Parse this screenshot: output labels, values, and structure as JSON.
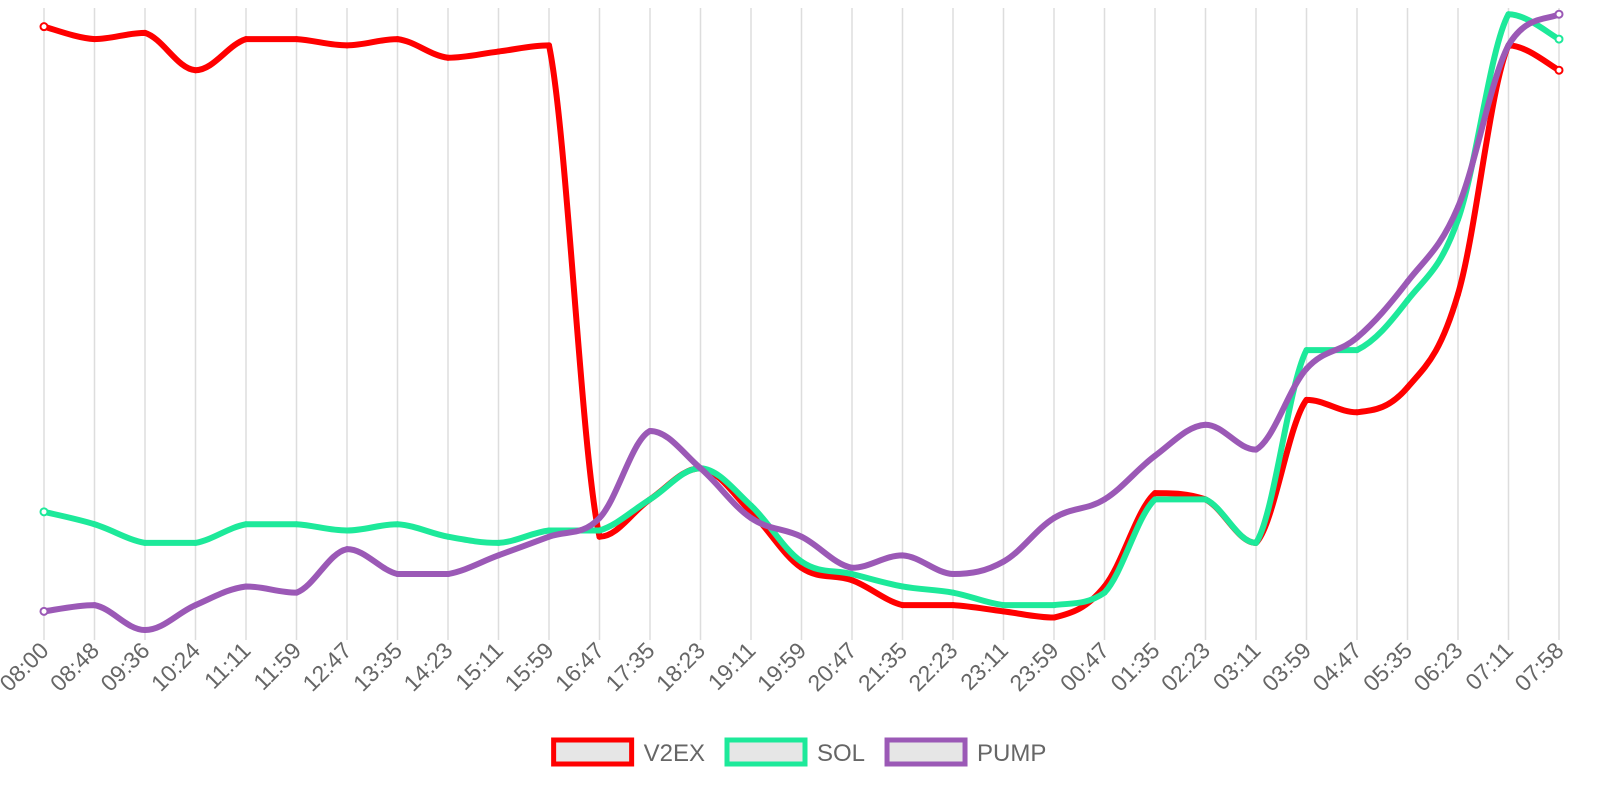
{
  "chart_data": {
    "type": "line",
    "title": "",
    "xlabel": "",
    "ylabel": "",
    "grid": "vertical",
    "legend": "bottom-center",
    "y_axis": "hidden",
    "categories": [
      "08:00",
      "08:48",
      "09:36",
      "10:24",
      "11:11",
      "11:59",
      "12:47",
      "13:35",
      "14:23",
      "15:11",
      "15:59",
      "16:47",
      "17:35",
      "18:23",
      "19:11",
      "19:59",
      "20:47",
      "21:35",
      "22:23",
      "23:11",
      "23:59",
      "00:47",
      "01:35",
      "02:23",
      "03:11",
      "03:59",
      "04:47",
      "05:35",
      "06:23",
      "07:11",
      "07:58"
    ],
    "ylim": [
      0,
      100
    ],
    "series": [
      {
        "name": "V2EX",
        "color": "#ff0000",
        "values": [
          97,
          95,
          96,
          90,
          95,
          95,
          94,
          95,
          92,
          93,
          94,
          15,
          21,
          26,
          19,
          10,
          8,
          4,
          4,
          3,
          2,
          7,
          22,
          21,
          14,
          37,
          35,
          39,
          54,
          94,
          90
        ]
      },
      {
        "name": "SOL",
        "color": "#1de99a",
        "values": [
          19,
          17,
          14,
          14,
          17,
          17,
          16,
          17,
          15,
          14,
          16,
          16,
          21,
          26,
          20,
          11,
          9,
          7,
          6,
          4,
          4,
          6,
          21,
          21,
          14,
          45,
          45,
          53,
          66,
          99,
          95
        ]
      },
      {
        "name": "PUMP",
        "color": "#9b59b6",
        "values": [
          3,
          4,
          0,
          4,
          7,
          6,
          13,
          9,
          9,
          12,
          15,
          18,
          32,
          26,
          18,
          15,
          10,
          12,
          9,
          11,
          18,
          21,
          28,
          33,
          29,
          42,
          47,
          56,
          68,
          94,
          99
        ]
      }
    ]
  }
}
